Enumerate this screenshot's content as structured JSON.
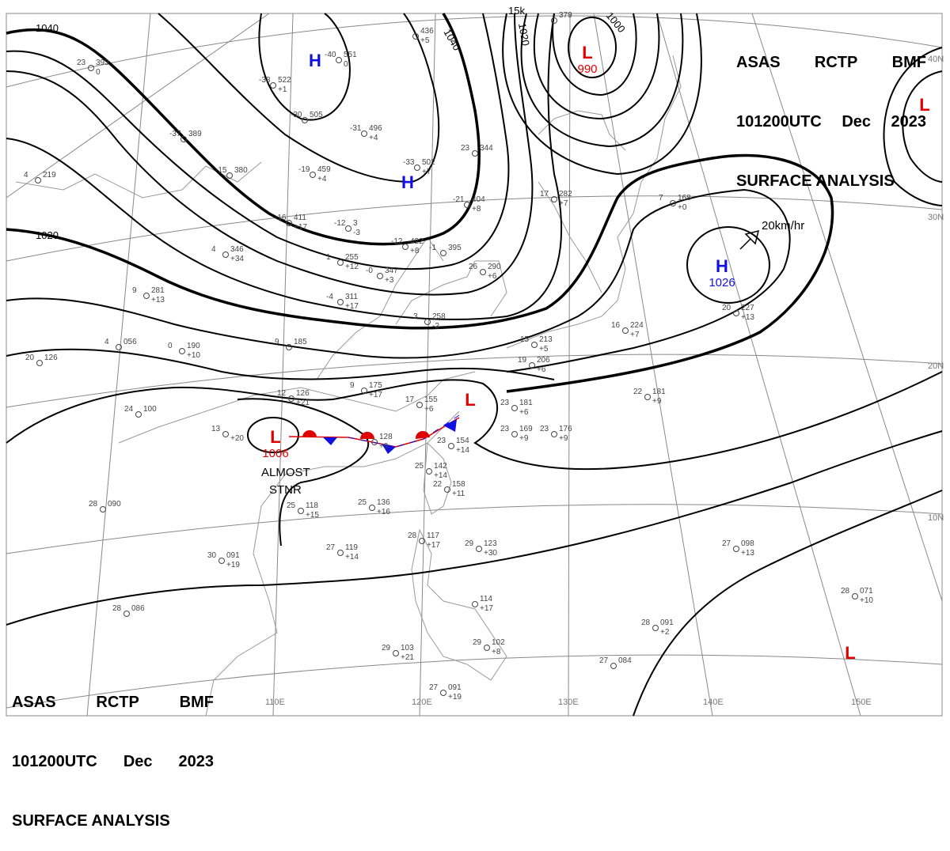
{
  "header": {
    "line1": [
      "ASAS",
      "RCTP",
      "BMF"
    ],
    "line2": [
      "101200UTC",
      "Dec",
      "2023"
    ],
    "line3": "SURFACE ANALYSIS"
  },
  "colors": {
    "high": "#1010e0",
    "low": "#e00000",
    "warm_front": "#e00000",
    "cold_front": "#1010e0",
    "isobar": "#000000",
    "grid": "#888888"
  },
  "latitude_labels": [
    "40N",
    "30N",
    "20N",
    "10N"
  ],
  "longitude_labels": [
    "110E",
    "120E",
    "130E",
    "140E",
    "150E"
  ],
  "isobar_labels": [
    "1040",
    "1040",
    "1020",
    "1000",
    "1020",
    "15k"
  ],
  "pressure_centers": [
    {
      "type": "H",
      "value": ""
    },
    {
      "type": "H",
      "value": ""
    },
    {
      "type": "H",
      "value": "1026"
    },
    {
      "type": "L",
      "value": "990"
    },
    {
      "type": "L",
      "value": "1006"
    },
    {
      "type": "L",
      "value": ""
    },
    {
      "type": "L",
      "value": ""
    },
    {
      "type": "L",
      "value": ""
    }
  ],
  "annotations": {
    "movement": "20km/hr",
    "almost": "ALMOST",
    "stnr": "STNR"
  },
  "stations": [
    {
      "t": "23",
      "p": "393",
      "d": "0"
    },
    {
      "t": "-38",
      "p": "522",
      "d": "+1"
    },
    {
      "t": "-40",
      "p": "551",
      "d": "0"
    },
    {
      "t": "-30",
      "p": "505",
      "d": ""
    },
    {
      "t": "-31",
      "p": "496",
      "d": "+4"
    },
    {
      "t": "-33",
      "p": "502",
      "d": "+7"
    },
    {
      "t": "-19",
      "p": "459",
      "d": "+4"
    },
    {
      "t": "-15",
      "p": "380",
      "d": ""
    },
    {
      "t": "-37",
      "p": "389",
      "d": ""
    },
    {
      "t": "4",
      "p": "219",
      "d": ""
    },
    {
      "t": "-16",
      "p": "411",
      "d": "+17"
    },
    {
      "t": "-12",
      "p": "3",
      "d": "-3"
    },
    {
      "t": "-12",
      "p": "422",
      "d": "+8"
    },
    {
      "t": "-21",
      "p": "404",
      "d": "+8"
    },
    {
      "t": "23",
      "p": "344",
      "d": ""
    },
    {
      "t": "17",
      "p": "282",
      "d": "+7"
    },
    {
      "t": "7",
      "p": "168",
      "d": "+0"
    },
    {
      "t": "4",
      "p": "346",
      "d": "+34"
    },
    {
      "t": "1",
      "p": "255",
      "d": "+12"
    },
    {
      "t": "-0",
      "p": "347",
      "d": "+3"
    },
    {
      "t": "-4",
      "p": "311",
      "d": "+17"
    },
    {
      "t": "9",
      "p": "281",
      "d": "+13"
    },
    {
      "t": "4",
      "p": "056",
      "d": ""
    },
    {
      "t": "0",
      "p": "190",
      "d": "+10"
    },
    {
      "t": "9",
      "p": "185",
      "d": ""
    },
    {
      "t": "20",
      "p": "126",
      "d": ""
    },
    {
      "t": "24",
      "p": "100",
      "d": ""
    },
    {
      "t": "12",
      "p": "126",
      "d": "+21"
    },
    {
      "t": "9",
      "p": "175",
      "d": "+17"
    },
    {
      "t": "17",
      "p": "155",
      "d": "+6"
    },
    {
      "t": "13",
      "p": "",
      "d": "+20"
    },
    {
      "t": "",
      "p": "128",
      "d": "+9"
    },
    {
      "t": "23",
      "p": "154",
      "d": "+14"
    },
    {
      "t": "23",
      "p": "181",
      "d": "+6"
    },
    {
      "t": "23",
      "p": "169",
      "d": "+9"
    },
    {
      "t": "23",
      "p": "176",
      "d": "+9"
    },
    {
      "t": "22",
      "p": "181",
      "d": "+9"
    },
    {
      "t": "20",
      "p": "227",
      "d": "+13"
    },
    {
      "t": "16",
      "p": "224",
      "d": "+7"
    },
    {
      "t": "25",
      "p": "142",
      "d": "+14"
    },
    {
      "t": "22",
      "p": "158",
      "d": "+11"
    },
    {
      "t": "25",
      "p": "136",
      "d": "+16"
    },
    {
      "t": "25",
      "p": "118",
      "d": "+15"
    },
    {
      "t": "28",
      "p": "090",
      "d": ""
    },
    {
      "t": "27",
      "p": "119",
      "d": "+14"
    },
    {
      "t": "30",
      "p": "091",
      "d": "+19"
    },
    {
      "t": "28",
      "p": "117",
      "d": "+17"
    },
    {
      "t": "29",
      "p": "123",
      "d": "+30"
    },
    {
      "t": "28",
      "p": "086",
      "d": ""
    },
    {
      "t": "",
      "p": "114",
      "d": "+17"
    },
    {
      "t": "29",
      "p": "103",
      "d": "+21"
    },
    {
      "t": "29",
      "p": "102",
      "d": "+8"
    },
    {
      "t": "27",
      "p": "091",
      "d": "+19"
    },
    {
      "t": "27",
      "p": "098",
      "d": "+13"
    },
    {
      "t": "28",
      "p": "071",
      "d": "+10"
    },
    {
      "t": "28",
      "p": "091",
      "d": "+2"
    },
    {
      "t": "27",
      "p": "084",
      "d": ""
    },
    {
      "t": "",
      "p": "436",
      "d": "+5"
    },
    {
      "t": "",
      "p": "379",
      "d": ""
    },
    {
      "t": "26",
      "p": "290",
      "d": "+6"
    },
    {
      "t": "3",
      "p": "258",
      "d": "-2"
    },
    {
      "t": "15",
      "p": "213",
      "d": "+5"
    },
    {
      "t": "19",
      "p": "206",
      "d": "+6"
    },
    {
      "t": "-1",
      "p": "395",
      "d": ""
    }
  ]
}
